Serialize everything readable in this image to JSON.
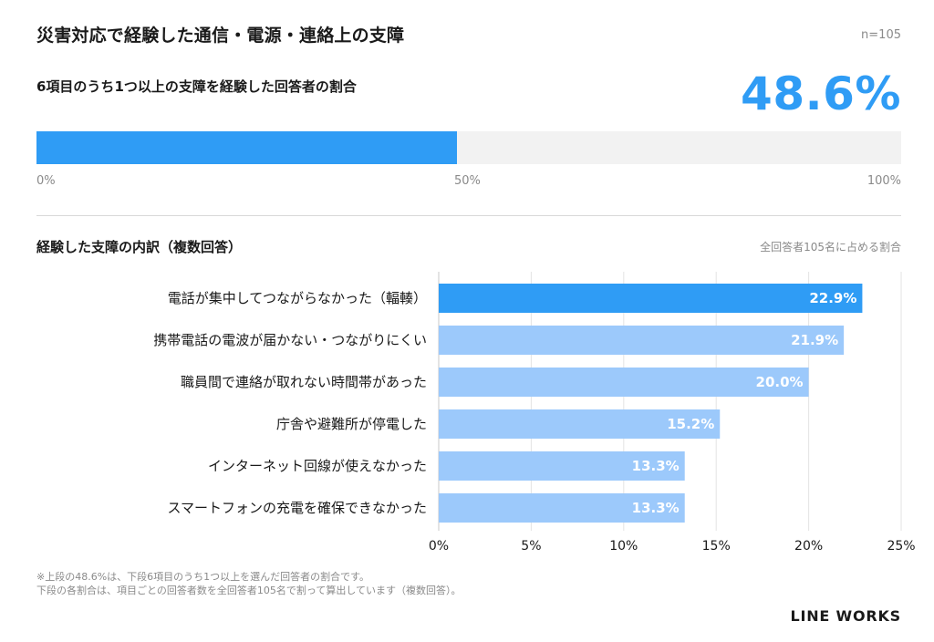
{
  "header": {
    "title": "災害対応で経験した通信・電源・連絡上の支障",
    "n_label": "n=105"
  },
  "summary": {
    "subtitle": "6項目のうち1つ以上の支障を経験した回答者の割合",
    "value_label": "48.6%",
    "value": 48.6,
    "tick_labels": [
      "0%",
      "50%",
      "100%"
    ],
    "accent_color": "#2f9cf5",
    "track_color": "#f2f2f2"
  },
  "breakdown": {
    "title": "経験した支障の内訳（複数回答）",
    "note": "全回答者105名に占める割合"
  },
  "chart_data": {
    "type": "bar",
    "orientation": "horizontal",
    "categories": [
      "電話が集中してつながらなかった（輻輳）",
      "携帯電話の電波が届かない・つながりにくい",
      "職員間で連絡が取れない時間帯があった",
      "庁舎や避難所が停電した",
      "インターネット回線が使えなかった",
      "スマートフォンの充電を確保できなかった"
    ],
    "values": [
      22.9,
      21.9,
      20.0,
      15.2,
      13.3,
      13.3
    ],
    "value_labels": [
      "22.9%",
      "21.9%",
      "20.0%",
      "15.2%",
      "13.3%",
      "13.3%"
    ],
    "xlim": [
      0,
      25
    ],
    "x_ticks": [
      "0%",
      "5%",
      "10%",
      "15%",
      "20%",
      "25%"
    ],
    "grid": true,
    "highlight_color": "#2f9cf5",
    "bar_color": "#9cc9fb"
  },
  "footnote": {
    "line1": "※上段の48.6%は、下段6項目のうち1つ以上を選んだ回答者の割合です。",
    "line2": "下段の各割合は、項目ごとの回答者数を全回答者105名で割って算出しています（複数回答）。"
  },
  "brand": {
    "logo": "LINE WORKS"
  }
}
